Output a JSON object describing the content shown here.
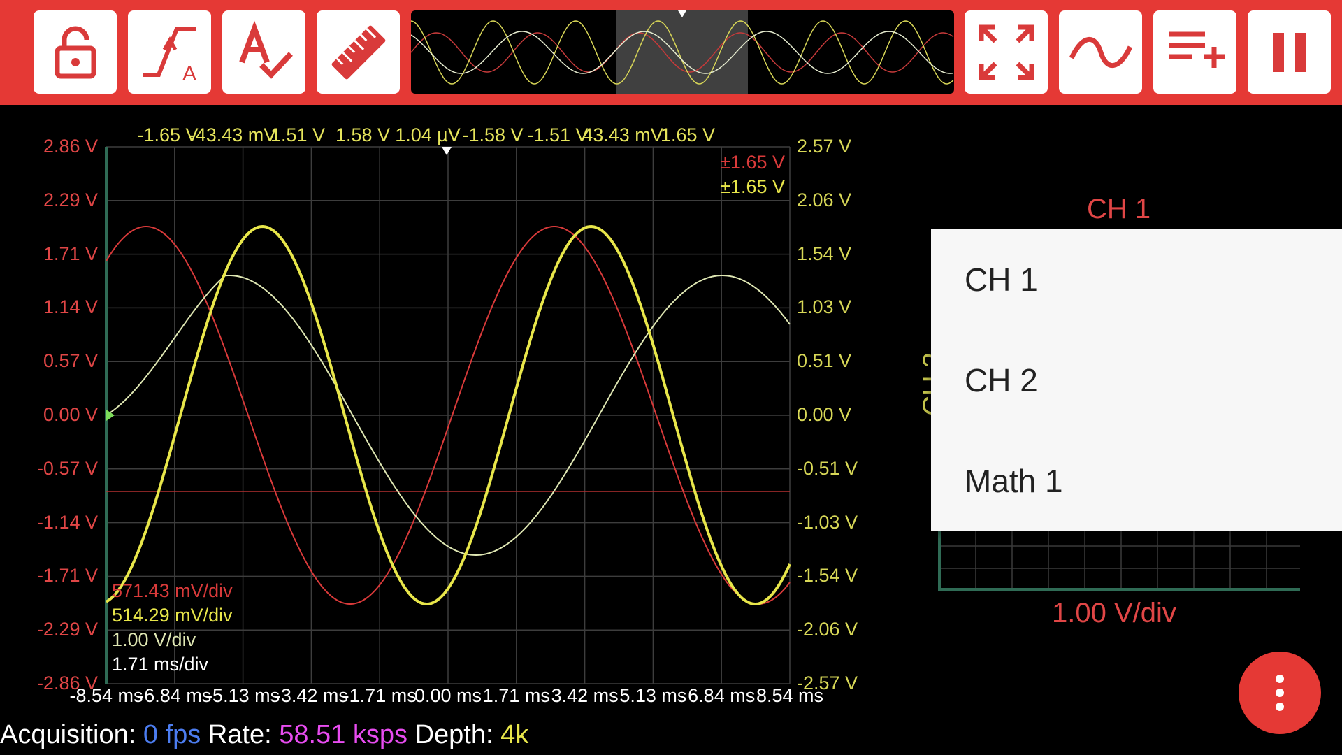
{
  "toolbar": {
    "icons": [
      "lock-icon",
      "trigger-icon",
      "auto-check-icon",
      "ruler-icon",
      "fullscreen-icon",
      "waveform-icon",
      "add-list-icon",
      "pause-icon"
    ],
    "trigger_letter": "A",
    "accent": "#e53935"
  },
  "plot": {
    "left_axis": [
      "2.86 V",
      "2.29 V",
      "1.71 V",
      "1.14 V",
      "0.57 V",
      "0.00 V",
      "-0.57 V",
      "-1.14 V",
      "-1.71 V",
      "-2.29 V",
      "-2.86 V"
    ],
    "right_axis": [
      "2.57 V",
      "2.06 V",
      "1.54 V",
      "1.03 V",
      "0.51 V",
      "0.00 V",
      "-0.51 V",
      "-1.03 V",
      "-1.54 V",
      "-2.06 V",
      "-2.57 V"
    ],
    "x_ticks": [
      "-8.54 ms",
      "-6.84 ms",
      "-5.13 ms",
      "-3.42 ms",
      "-1.71 ms",
      "0.00 ms",
      "1.71 ms",
      "3.42 ms",
      "5.13 ms",
      "6.84 ms",
      "8.54 ms"
    ],
    "cursor_measures": [
      "-1.65 V",
      "-43.43 mV",
      "1.51 V",
      "1.58 V",
      "1.04 µV",
      "-1.58 V",
      "-1.51 V",
      "43.43 mV",
      "1.65 V"
    ],
    "amplitude_ch1": "±1.65 V",
    "amplitude_ch2": "±1.65 V",
    "scale_ch1": "571.43 mV/div",
    "scale_ch2": "514.29 mV/div",
    "scale_math": "1.00 V/div",
    "scale_time": "1.71 ms/div",
    "colors": {
      "ch1": "#d93a3a",
      "ch2": "#e8e64a",
      "math": "#dfe7b3",
      "grid": "#4a4a4a",
      "left_axis": "#e04646",
      "right_axis": "#d8d857"
    }
  },
  "status": {
    "acq_label": "Acquisition:",
    "acq_value": "0 fps",
    "rate_label": "Rate:",
    "rate_value": "58.51 ksps",
    "depth_label": "Depth:",
    "depth_value": "4k",
    "colors": {
      "acq": "#4c7df0",
      "rate": "#e84cf0",
      "depth": "#e8e64a"
    }
  },
  "side_panel": {
    "ch1_title": "CH 1",
    "ch2_title": "CH 2",
    "vdiv": "1.00 V/div"
  },
  "menu": {
    "items": [
      "CH 1",
      "CH 2",
      "Math 1"
    ]
  },
  "fab": {
    "icon": "more-vert-icon"
  }
}
